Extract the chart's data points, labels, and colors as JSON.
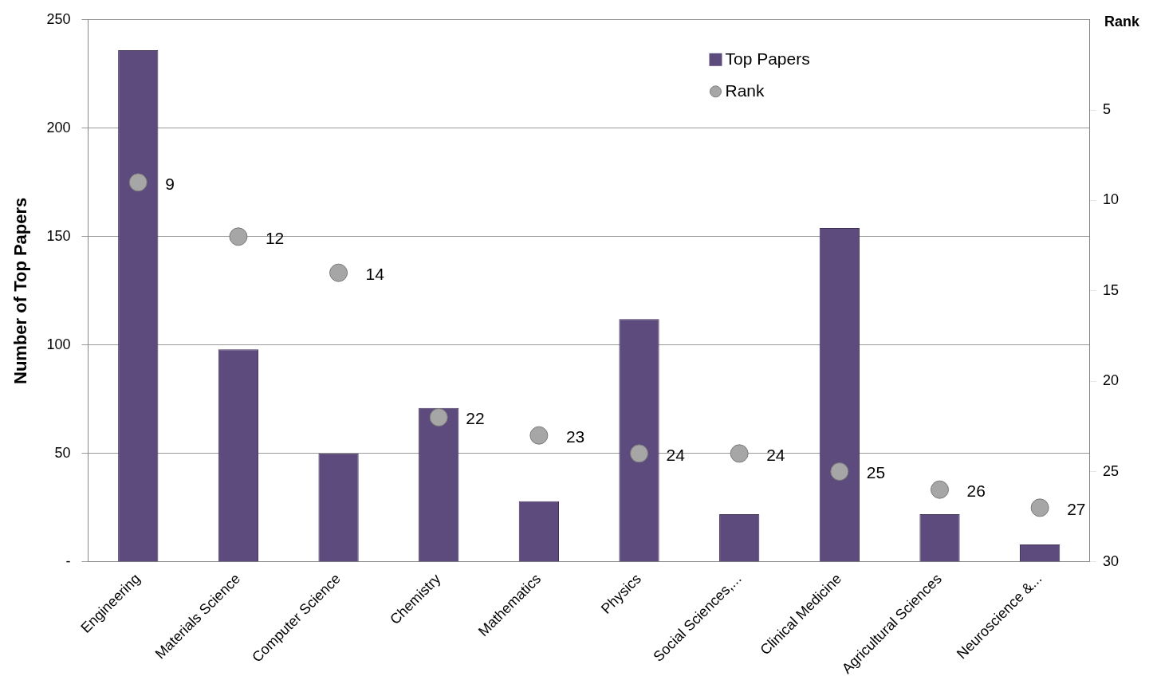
{
  "chart_data": {
    "type": "bar",
    "ylabel": "Number of Top Papers",
    "y2label": "Rank",
    "categories": [
      "Engineering",
      "Materials Science",
      "Computer Science",
      "Chemistry",
      "Mathematics",
      "Physics",
      "Social Sciences,...",
      "Clinical Medicine",
      "Agricultural Sciences",
      "Neuroscience &..."
    ],
    "series": [
      {
        "name": "Top Papers",
        "color": "#5e4b7e",
        "values": [
          236,
          98,
          50,
          71,
          28,
          112,
          22,
          154,
          22,
          8
        ]
      },
      {
        "name": "Rank",
        "type": "scatter",
        "axis": "y2",
        "color": "#a6a6a6",
        "values": [
          9,
          12,
          14,
          22,
          23,
          24,
          24,
          25,
          26,
          27
        ],
        "value_labels": [
          "9",
          "12",
          "14",
          "22",
          "23",
          "24",
          "24",
          "25",
          "26",
          "27"
        ]
      }
    ],
    "ylim": [
      0,
      250
    ],
    "yticks": [
      {
        "value": 0,
        "label": "-"
      },
      50,
      100,
      150,
      200,
      250
    ],
    "y2lim": [
      30,
      0
    ],
    "y2ticks": [
      5,
      10,
      15,
      20,
      25,
      30
    ],
    "grid": "y",
    "legend": "top right",
    "marker": "circle"
  }
}
